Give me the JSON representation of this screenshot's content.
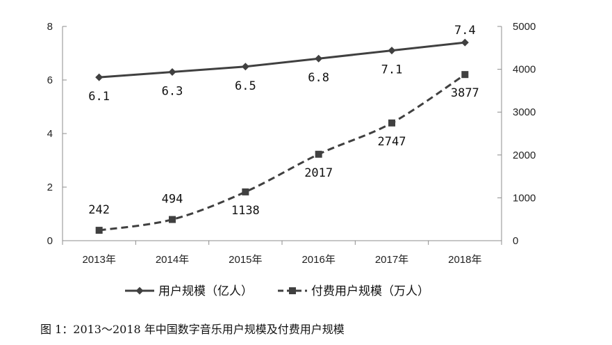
{
  "chart_data": {
    "type": "line",
    "categories": [
      "2013年",
      "2014年",
      "2015年",
      "2016年",
      "2017年",
      "2018年"
    ],
    "series": [
      {
        "name": "用户规模（亿人）",
        "axis": "left",
        "values": [
          6.1,
          6.3,
          6.5,
          6.8,
          7.1,
          7.4
        ],
        "labels": [
          "6.1",
          "6.3",
          "6.5",
          "6.8",
          "7.1",
          "7.4"
        ],
        "line_style": "solid",
        "marker": "diamond",
        "color": "#404040"
      },
      {
        "name": "付费用户规模（万人）",
        "axis": "right",
        "values": [
          242,
          494,
          1138,
          2017,
          2747,
          3877
        ],
        "labels": [
          "242",
          "494",
          "1138",
          "2017",
          "2747",
          "3877"
        ],
        "line_style": "dashed",
        "marker": "square",
        "color": "#404040"
      }
    ],
    "y_left": {
      "ylim": [
        0,
        8
      ],
      "ticks": [
        "0",
        "2",
        "4",
        "6",
        "8"
      ]
    },
    "y_right": {
      "ylim": [
        0,
        5000
      ],
      "ticks": [
        "0",
        "1000",
        "2000",
        "3000",
        "4000",
        "5000"
      ]
    },
    "legend_position": "bottom",
    "grid": false
  },
  "caption": "图 1：2013～2018 年中国数字音乐用户规模及付费用户规模"
}
